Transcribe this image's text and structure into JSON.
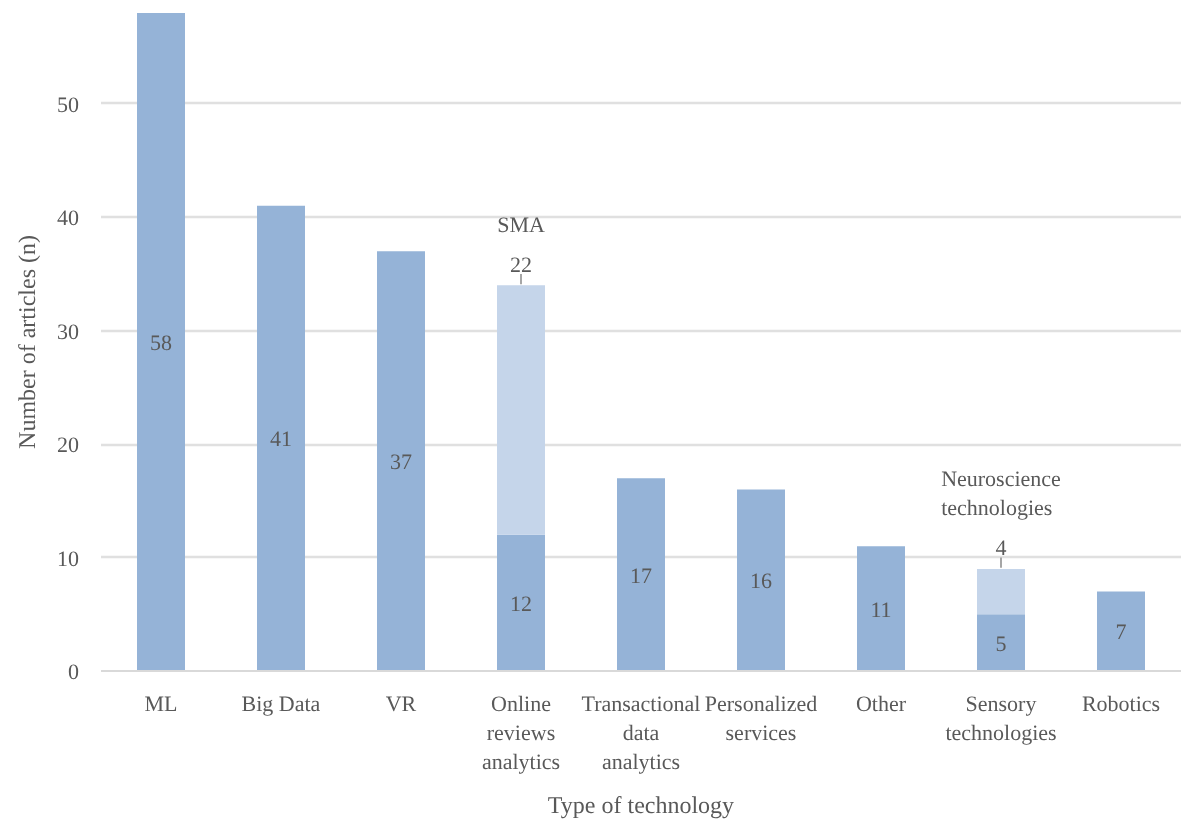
{
  "chart_data": {
    "type": "bar",
    "stacked": true,
    "xlabel": "Type of technology",
    "ylabel": "Number of articles (n)",
    "categories": [
      "ML",
      "Big Data",
      "VR",
      "Online reviews analytics",
      "Transactional data analytics",
      "Personalized services",
      "Other",
      "Sensory technologies",
      "Robotics"
    ],
    "series": [
      {
        "color": "#95b3d7",
        "values": [
          58,
          41,
          37,
          12,
          17,
          16,
          11,
          5,
          7
        ]
      },
      {
        "name": "SMA",
        "color": "#c5d5ea",
        "values": [
          null,
          null,
          null,
          22,
          null,
          null,
          null,
          null,
          null
        ]
      },
      {
        "name": "Neuroscience technologies",
        "color": "#c5d5ea",
        "values": [
          null,
          null,
          null,
          null,
          null,
          null,
          null,
          4,
          null
        ]
      }
    ],
    "ylim": [
      0,
      58
    ],
    "yticks": [
      0,
      10,
      20,
      30,
      40,
      50
    ],
    "grid": "y",
    "data_labels": true
  }
}
